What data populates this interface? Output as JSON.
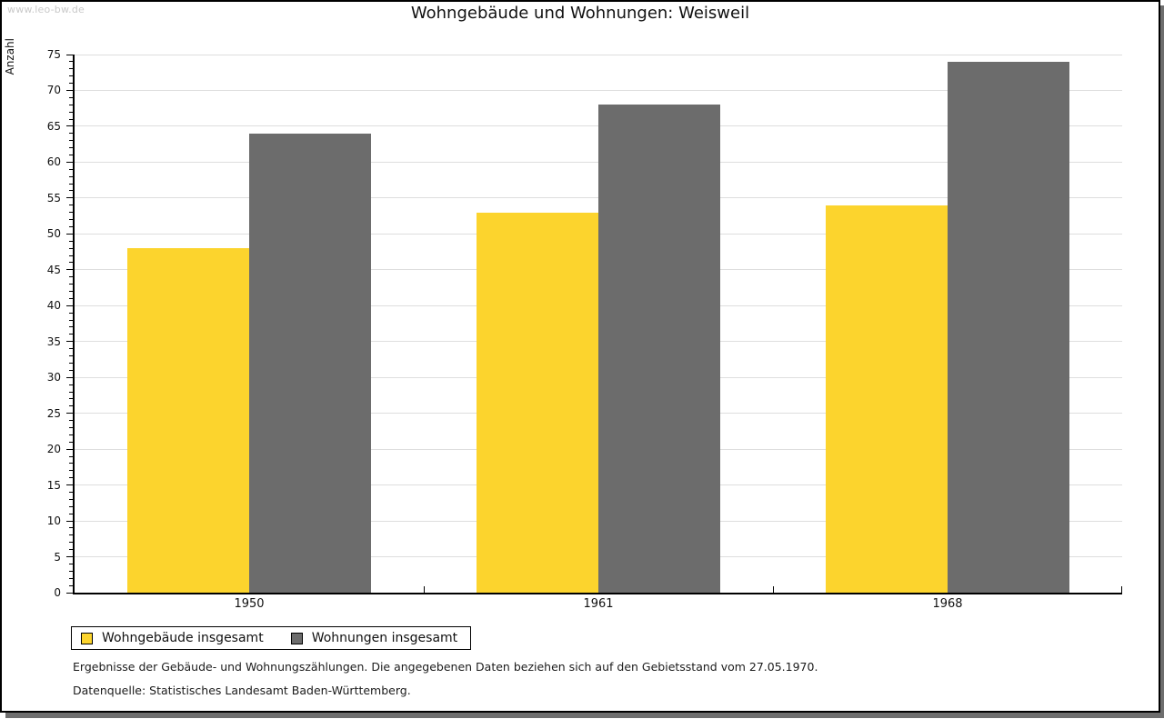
{
  "watermark": "www.leo-bw.de",
  "title": "Wohngebäude und Wohnungen: Weisweil",
  "chart_data": {
    "type": "bar",
    "title": "Wohngebäude und Wohnungen: Weisweil",
    "categories": [
      "1950",
      "1961",
      "1968"
    ],
    "series": [
      {
        "name": "Wohngebäude insgesamt",
        "color": "#fcd42d",
        "values": [
          48,
          53,
          54
        ]
      },
      {
        "name": "Wohnungen insgesamt",
        "color": "#6c6c6c",
        "values": [
          64,
          68,
          74
        ]
      }
    ],
    "xlabel": "",
    "ylabel": "Anzahl",
    "ylim": [
      0,
      75
    ],
    "ytick_major": 5,
    "ytick_minor": 1,
    "grid": "horizontal-major-only",
    "gridline_color": "#dedede",
    "legend_position": "bottom-left"
  },
  "footnotes": {
    "line1": "Ergebnisse der Gebäude- und Wohnungszählungen. Die angegebenen Daten beziehen sich auf den Gebietsstand vom 27.05.1970.",
    "line2": "Datenquelle: Statistisches Landesamt Baden-Württemberg."
  },
  "colors": {
    "bar_yellow": "#fcd42d",
    "bar_gray": "#6c6c6c",
    "shadow": "#6e6e6e",
    "watermark": "#c9c9c9",
    "axis": "#000000"
  }
}
